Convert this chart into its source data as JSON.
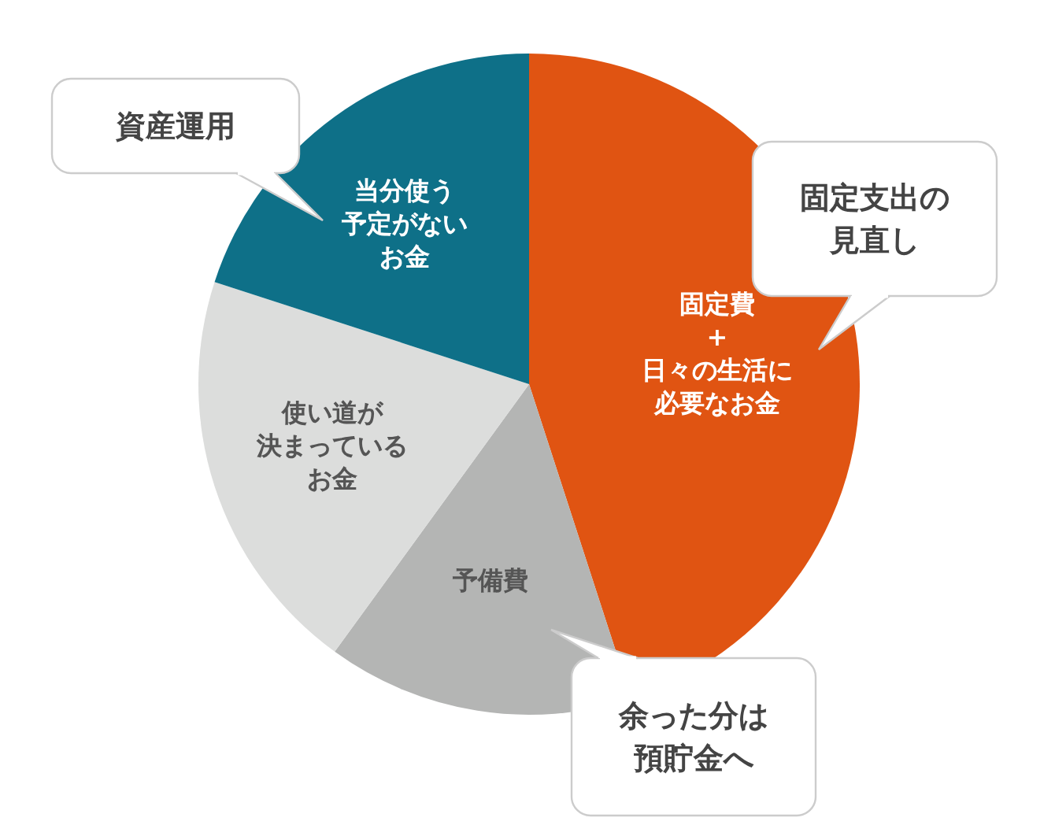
{
  "chart_data": {
    "type": "pie",
    "categories": [
      "固定費+日々の生活に必要なお金",
      "予備費",
      "使い道が決まっているお金",
      "当分使う予定がないお金"
    ],
    "values": [
      45,
      15,
      20,
      20
    ],
    "colors": [
      "#e05412",
      "#b4b5b4",
      "#dcdddc",
      "#0e7088"
    ],
    "annotations": [
      "資産運用",
      "固定支出の見直し",
      "余った分は預貯金へ"
    ]
  }
}
